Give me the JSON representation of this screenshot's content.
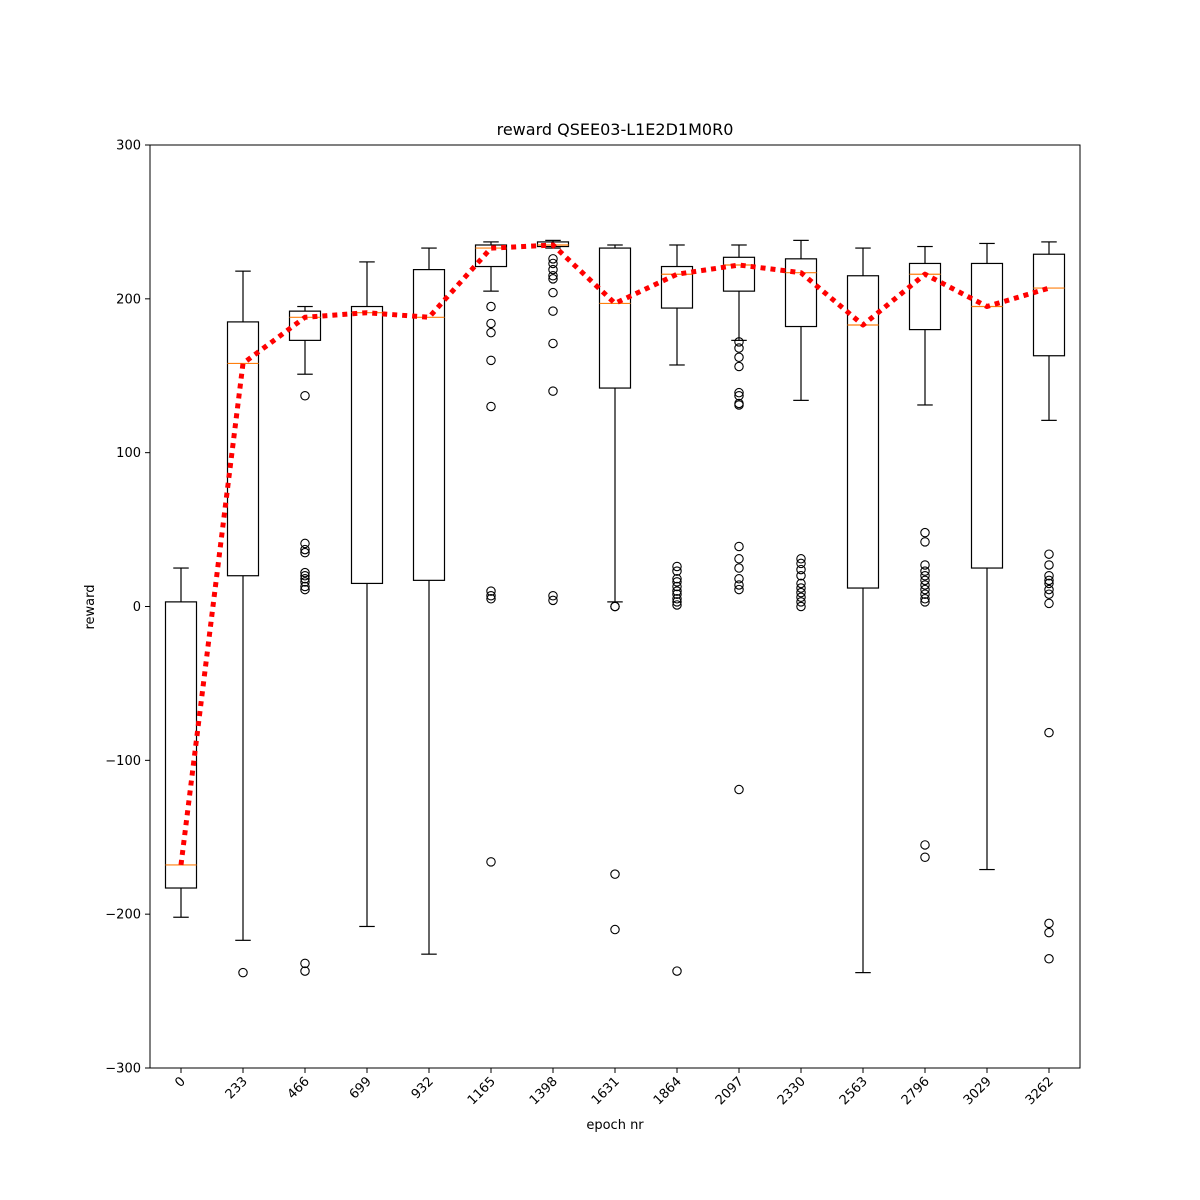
{
  "chart_data": {
    "type": "box",
    "title": "reward QSEE03-L1E2D1M0R0",
    "xlabel": "epoch nr",
    "ylabel": "reward",
    "ylim": [
      -300,
      300
    ],
    "yticks": [
      -300,
      -200,
      -100,
      0,
      100,
      200,
      300
    ],
    "ytick_labels": [
      "−300",
      "−200",
      "−100",
      "0",
      "100",
      "200",
      "300"
    ],
    "grid": false,
    "colors": {
      "box": "#000000",
      "median": "#ff7f0e",
      "mean_line": "#ff0000",
      "outlier": "#000000"
    },
    "categories": [
      "0",
      "233",
      "466",
      "699",
      "932",
      "1165",
      "1398",
      "1631",
      "1864",
      "2097",
      "2330",
      "2563",
      "2796",
      "3029",
      "3262"
    ],
    "boxes": [
      {
        "label": "0",
        "whislo": -202,
        "q1": -183,
        "med": -168,
        "q3": 3,
        "whishi": 25,
        "fliers": []
      },
      {
        "label": "233",
        "whislo": -217,
        "q1": 20,
        "med": 158,
        "q3": 185,
        "whishi": 218,
        "fliers": [
          -238
        ]
      },
      {
        "label": "466",
        "whislo": 151,
        "q1": 173,
        "med": 188,
        "q3": 192,
        "whishi": 195,
        "fliers": [
          137,
          41,
          37,
          35,
          22,
          20,
          18,
          16,
          13,
          11,
          -232,
          -237
        ]
      },
      {
        "label": "699",
        "whislo": -208,
        "q1": 15,
        "med": 191,
        "q3": 195,
        "whishi": 224,
        "fliers": []
      },
      {
        "label": "932",
        "whislo": -226,
        "q1": 17,
        "med": 188,
        "q3": 219,
        "whishi": 233,
        "fliers": []
      },
      {
        "label": "1165",
        "whislo": 205,
        "q1": 221,
        "med": 233,
        "q3": 235,
        "whishi": 237,
        "fliers": [
          195,
          184,
          178,
          160,
          130,
          10,
          7,
          5,
          -166
        ]
      },
      {
        "label": "1398",
        "whislo": 233,
        "q1": 234,
        "med": 235,
        "q3": 237,
        "whishi": 238,
        "fliers": [
          226,
          223,
          219,
          215,
          213,
          204,
          192,
          171,
          140,
          7,
          4
        ]
      },
      {
        "label": "1631",
        "whislo": 3,
        "q1": 142,
        "med": 197,
        "q3": 233,
        "whishi": 235,
        "fliers": [
          0,
          0,
          -174,
          -210
        ]
      },
      {
        "label": "1864",
        "whislo": 157,
        "q1": 194,
        "med": 216,
        "q3": 221,
        "whishi": 235,
        "fliers": [
          26,
          23,
          18,
          16,
          13,
          10,
          8,
          5,
          3,
          1,
          -237
        ]
      },
      {
        "label": "2097",
        "whislo": 173,
        "q1": 205,
        "med": 222,
        "q3": 227,
        "whishi": 235,
        "fliers": [
          172,
          168,
          162,
          156,
          139,
          137,
          132,
          131,
          39,
          31,
          25,
          18,
          14,
          11,
          -119
        ]
      },
      {
        "label": "2330",
        "whislo": 134,
        "q1": 182,
        "med": 217,
        "q3": 226,
        "whishi": 238,
        "fliers": [
          31,
          28,
          24,
          20,
          15,
          12,
          9,
          6,
          3,
          0
        ]
      },
      {
        "label": "2563",
        "whislo": -238,
        "q1": 12,
        "med": 183,
        "q3": 215,
        "whishi": 233,
        "fliers": []
      },
      {
        "label": "2796",
        "whislo": 131,
        "q1": 180,
        "med": 216,
        "q3": 223,
        "whishi": 234,
        "fliers": [
          48,
          42,
          27,
          23,
          20,
          17,
          14,
          11,
          8,
          5,
          3,
          -155,
          -163
        ]
      },
      {
        "label": "3029",
        "whislo": -171,
        "q1": 25,
        "med": 195,
        "q3": 223,
        "whishi": 236,
        "fliers": []
      },
      {
        "label": "3262",
        "whislo": 121,
        "q1": 163,
        "med": 207,
        "q3": 229,
        "whishi": 237,
        "fliers": [
          34,
          27,
          20,
          17,
          15,
          11,
          8,
          2,
          -82,
          -206,
          -212,
          -229
        ]
      }
    ],
    "mean_line": {
      "style": "dotted",
      "x": [
        "0",
        "233",
        "466",
        "699",
        "932",
        "1165",
        "1398",
        "1631",
        "1864",
        "2097",
        "2330",
        "2563",
        "2796",
        "3029",
        "3262"
      ],
      "values": [
        -168,
        158,
        188,
        191,
        188,
        233,
        235,
        197,
        216,
        222,
        217,
        183,
        216,
        195,
        207
      ]
    }
  }
}
